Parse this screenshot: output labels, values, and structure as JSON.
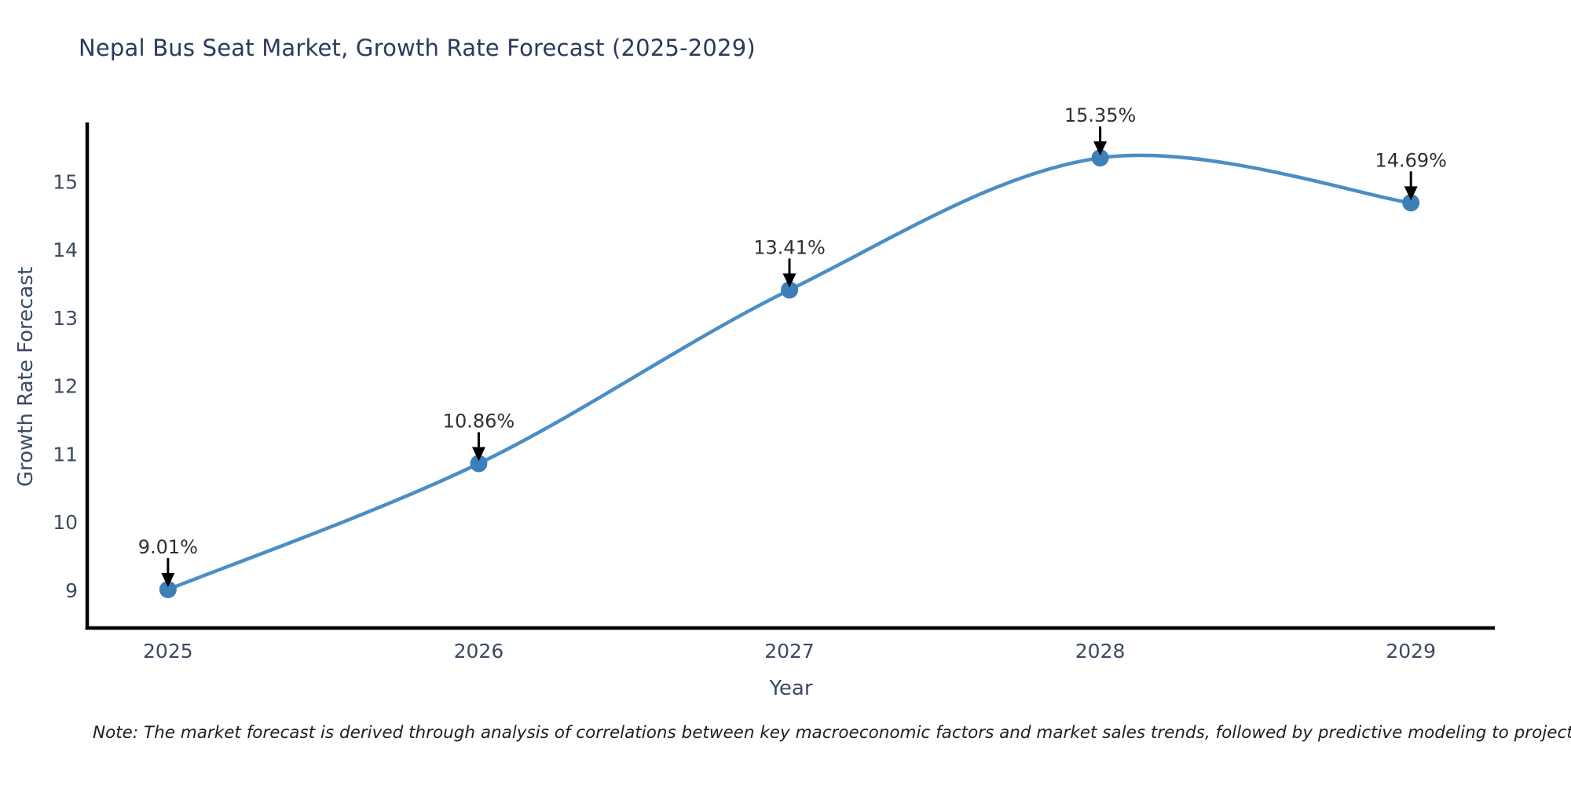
{
  "title": "Nepal Bus Seat Market, Growth Rate Forecast (2025-2029)",
  "note": "Note: The market forecast is derived through analysis of correlations between key macroeconomic factors and market sales trends, followed by predictive modeling to project future sales",
  "chart_data": {
    "type": "line",
    "title": "Nepal Bus Seat Market, Growth Rate Forecast (2025-2029)",
    "xlabel": "Year",
    "ylabel": "Growth Rate Forecast",
    "x": [
      2025,
      2026,
      2027,
      2028,
      2029
    ],
    "y": [
      9.01,
      10.86,
      13.41,
      15.35,
      14.69
    ],
    "point_labels": [
      "9.01%",
      "10.86%",
      "13.41%",
      "15.35%",
      "14.69%"
    ],
    "xticks": [
      2025,
      2026,
      2027,
      2028,
      2029
    ],
    "yticks": [
      9,
      10,
      11,
      12,
      13,
      14,
      15
    ],
    "xlim": [
      2024.74,
      2029.27
    ],
    "ylim": [
      8.445,
      15.87
    ],
    "grid": false,
    "legend_position": "none",
    "annotation_style": "down-arrow"
  },
  "colors": {
    "line": "#4a8ec5",
    "marker": "#3d7fb8",
    "spine": "#000000",
    "arrow": "#000000",
    "title_text": "#2b3a5c",
    "tick_text": "#3b4a63",
    "annotation_text": "#2f2f2f",
    "note_text": "#1f1f1f",
    "background": "#ffffff"
  }
}
